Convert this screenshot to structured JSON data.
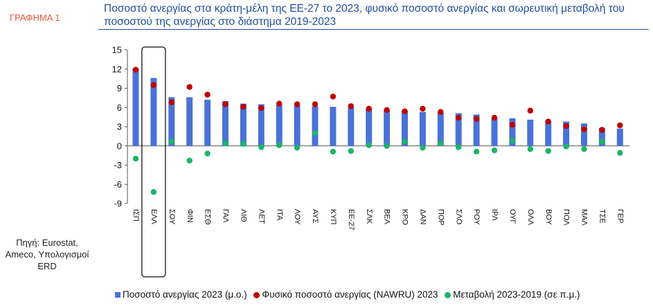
{
  "sidebar": {
    "label": "ΓΡΑΦΗΜΑ 1",
    "source": "Πηγή: Eurostat, Ameco, Υπολογισμοί ERD"
  },
  "colors": {
    "bar": "#4a72d6",
    "nawru": "#c00000",
    "change": "#1db36b",
    "title": "#1f4e9b",
    "label": "#e8543c"
  },
  "chart_data": {
    "type": "bar",
    "title": "Ποσοστό ανεργίας στα κράτη-μέλη της ΕΕ-27 το 2023, φυσικό ποσοστό ανεργίας και σωρευτική μεταβολή του ποσοστού της ανεργίας στο διάστημα 2019-2023",
    "ylim": [
      -9,
      15
    ],
    "yticks": [
      "15",
      "12",
      "9",
      "6",
      "3",
      "0",
      "-3",
      "-6",
      "-9"
    ],
    "categories": [
      "Ισπανία",
      "Ελλάδα",
      "Σουηδία",
      "Φινλανδία",
      "Εσθονία",
      "Γαλλία",
      "Λιθουανία",
      "Λετονία",
      "Ιταλία",
      "Λουξεμβούργο",
      "Αυστρία",
      "Κύπρος",
      "ΕΕ-27",
      "Σλοβακία",
      "Βέλγιο",
      "Κροατία",
      "Δανία",
      "Πορτογαλία",
      "Σλοβενία",
      "Ρουμανία",
      "Ιρλανδία",
      "Ουγγαρία",
      "Ολλανδία",
      "Βουλγαρία",
      "Πολωνία",
      "Μάλτα",
      "Τσεχία",
      "Γερμανία"
    ],
    "category_labels": [
      "ΙΣΠ",
      "ΕΛΛ",
      "ΣΟΥ",
      "ΦΙΝ",
      "ΕΣΘ",
      "ΓΑΛ",
      "ΛΙΘ",
      "ΛΕΤ",
      "ΙΤΑ",
      "ΛΟΥ",
      "ΑΥΣ",
      "ΚΥΠ",
      "ΕΕ-27",
      "ΣΛΚ",
      "ΒΕΛ",
      "ΚΡΟ",
      "ΔΑΝ",
      "ΠΟΡ",
      "ΣΛΟ",
      "ΡΟΥ",
      "ΙΡΛ",
      "ΟΥΓ",
      "ΟΛΛ",
      "ΒΟΥ",
      "ΠΟΛ",
      "ΜΑΛ",
      "ΤΣΕ",
      "ΓΕΡ"
    ],
    "highlighted_category": "Ελλάδα",
    "series": [
      {
        "name": "Ποσοστό ανεργίας 2023 (μ.ο.)",
        "type": "bar",
        "values": [
          12.1,
          10.6,
          7.6,
          7.6,
          7.2,
          7.0,
          6.6,
          6.5,
          6.4,
          6.3,
          6.2,
          6.1,
          6.0,
          5.8,
          5.6,
          5.5,
          5.3,
          5.2,
          5.1,
          4.9,
          4.3,
          4.3,
          4.1,
          3.9,
          3.8,
          3.5,
          2.8,
          2.7
        ]
      },
      {
        "name": "Φυσικό ποσοστό ανεργίας (NAWRU) 2023",
        "type": "scatter",
        "values": [
          11.9,
          9.5,
          6.8,
          9.2,
          8.0,
          6.5,
          6.1,
          5.9,
          6.6,
          6.5,
          6.5,
          7.7,
          6.2,
          5.8,
          5.6,
          5.4,
          5.8,
          5.3,
          4.4,
          4.2,
          4.4,
          3.3,
          5.5,
          3.8,
          3.1,
          2.6,
          2.5,
          3.2
        ]
      },
      {
        "name": "Μεταβολή 2023-2019 (σε π.μ.)",
        "type": "scatter",
        "values": [
          -2.0,
          -7.2,
          0.7,
          -2.3,
          -1.2,
          0.4,
          0.3,
          -0.2,
          0.1,
          -0.3,
          2.0,
          -0.9,
          -0.8,
          0.1,
          0.0,
          0.7,
          -0.3,
          0.4,
          -0.2,
          -0.9,
          -0.7,
          0.8,
          -0.5,
          -0.8,
          -0.1,
          -0.5,
          0.7,
          -1.1
        ]
      }
    ],
    "legend": [
      "Ποσοστό ανεργίας 2023 (μ.ο.)",
      "Φυσικό ποσοστό ανεργίας (NAWRU) 2023",
      "Μεταβολή 2023-2019 (σε π.μ.)"
    ],
    "legend_position": "bottom"
  }
}
